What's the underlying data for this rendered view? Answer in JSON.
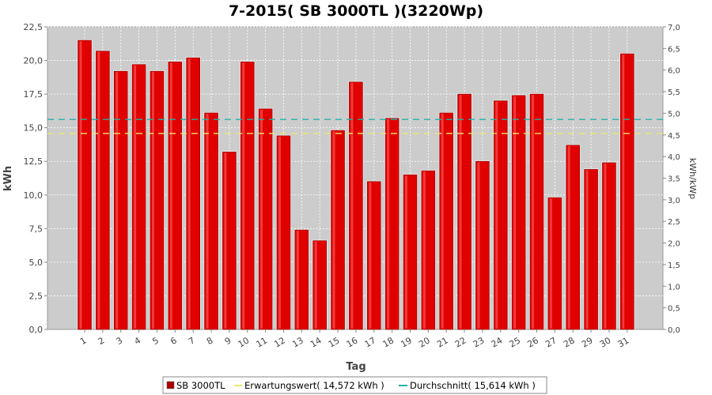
{
  "chart_data": {
    "type": "bar",
    "title": "7-2015( SB 3000TL )(3220Wp)",
    "xlabel": "Tag",
    "ylabel": "kWh",
    "ylabel_right": "kWh/kWp",
    "ylim": [
      0,
      22.5
    ],
    "ylim_right": [
      0,
      7.0
    ],
    "yticks": [
      "0,0",
      "2,5",
      "5,0",
      "7,5",
      "10,0",
      "12,5",
      "15,0",
      "17,5",
      "20,0",
      "22,5"
    ],
    "yticks_right": [
      "0,0",
      "0,5",
      "1,0",
      "1,5",
      "2,0",
      "2,5",
      "3,0",
      "3,5",
      "4,0",
      "4,5",
      "5,0",
      "5,5",
      "6,0",
      "6,5",
      "7,0"
    ],
    "categories": [
      "1",
      "2",
      "3",
      "4",
      "5",
      "6",
      "7",
      "8",
      "9",
      "10",
      "11",
      "12",
      "13",
      "14",
      "15",
      "16",
      "17",
      "18",
      "19",
      "20",
      "21",
      "22",
      "23",
      "24",
      "25",
      "26",
      "27",
      "28",
      "29",
      "30",
      "31"
    ],
    "series": [
      {
        "name": "SB 3000TL",
        "color": "#dd0000",
        "values": [
          21.5,
          20.7,
          19.2,
          19.7,
          19.2,
          19.9,
          20.2,
          16.1,
          13.2,
          19.9,
          16.4,
          14.4,
          7.4,
          6.6,
          14.8,
          18.4,
          11.0,
          15.7,
          11.5,
          11.8,
          16.1,
          17.5,
          12.5,
          17.0,
          17.4,
          17.5,
          9.8,
          13.7,
          11.9,
          12.4,
          20.5
        ]
      }
    ],
    "reference_lines": [
      {
        "name": "Erwartungswert",
        "value": 14.572,
        "color": "#e8e870",
        "dash": true
      },
      {
        "name": "Durchschnitt",
        "value": 15.614,
        "color": "#20b2aa",
        "dash": true
      }
    ],
    "grid": true,
    "legend_position": "bottom"
  },
  "legend": {
    "items": [
      {
        "label": "SB 3000TL",
        "color": "#aa0000"
      },
      {
        "label": "Erwartungswert( 14,572 kWh )",
        "color": "#e8e870"
      },
      {
        "label": "Durchschnitt( 15,614 kWh )",
        "color": "#20b2aa"
      }
    ]
  },
  "colors": {
    "plot_background": "#cccccc",
    "grid": "#ffffff",
    "bar_fill": "#e00000",
    "bar_edge": "#ffffff"
  }
}
